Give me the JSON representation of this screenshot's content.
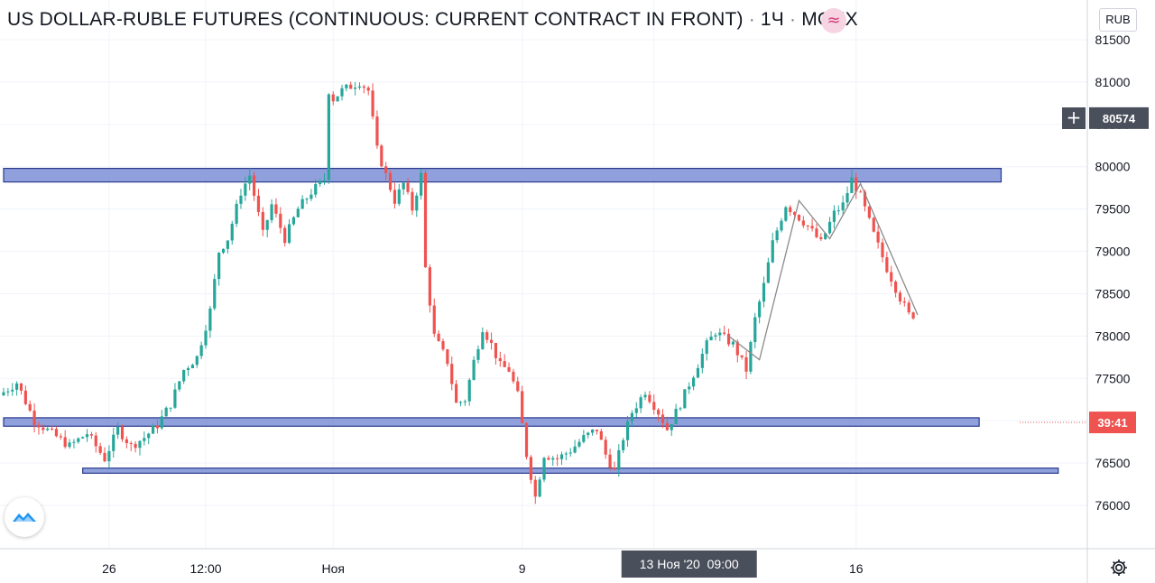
{
  "header": {
    "symbol": "US DOLLAR-RUBLE FUTURES (CONTINUOUS: CURRENT CONTRACT IN FRONT)",
    "separator": "·",
    "interval": "1Ч",
    "exchange": "MOEX",
    "approx_symbol": "≈",
    "currency": "RUB"
  },
  "crosshair": {
    "price_label": "80574",
    "time_label": "13 Ноя '20  09:00",
    "plus_symbol": "+"
  },
  "countdown_label": "39:41",
  "icons": {
    "logo": "tradingview-logo-icon",
    "settings": "gear-icon",
    "plus": "plus-icon"
  },
  "colors": {
    "up": "#26a69a",
    "down": "#ef5350",
    "zone_fill": "#7b8fd6",
    "zone_stroke": "#2a3a8c",
    "trend_line": "#8a8a8a",
    "countdown_bg": "#ef5350",
    "badge_bg": "#4a4f5c",
    "grid": "#f0f3fa"
  },
  "chart_data": {
    "type": "candlestick",
    "y_axis": {
      "range": [
        75600,
        81800
      ],
      "ticks": [
        81500,
        81000,
        80500,
        80000,
        79500,
        79000,
        78500,
        78000,
        77500,
        77000,
        76500,
        76000
      ]
    },
    "x_axis": {
      "range_hours": [
        0,
        241
      ],
      "ticks": [
        {
          "label": "26",
          "at": 24
        },
        {
          "label": "12:00",
          "at": 46
        },
        {
          "label": "Ноя",
          "at": 75
        },
        {
          "label": "9",
          "at": 118
        },
        {
          "label": "12",
          "at": 148
        },
        {
          "label": "16",
          "at": 194
        }
      ]
    },
    "series_anchors": [
      [
        0,
        77300
      ],
      [
        4,
        77450
      ],
      [
        8,
        77000
      ],
      [
        12,
        76850
      ],
      [
        16,
        76700
      ],
      [
        20,
        76850
      ],
      [
        24,
        76550
      ],
      [
        27,
        76900
      ],
      [
        30,
        76700
      ],
      [
        33,
        76800
      ],
      [
        36,
        76950
      ],
      [
        39,
        77200
      ],
      [
        42,
        77600
      ],
      [
        45,
        77750
      ],
      [
        48,
        78300
      ],
      [
        50,
        79000
      ],
      [
        52,
        79150
      ],
      [
        55,
        79700
      ],
      [
        57,
        79900
      ],
      [
        60,
        79200
      ],
      [
        62,
        79550
      ],
      [
        65,
        79150
      ],
      [
        68,
        79500
      ],
      [
        71,
        79700
      ],
      [
        74,
        79850
      ],
      [
        75,
        80900
      ],
      [
        76,
        80800
      ],
      [
        78,
        80900
      ],
      [
        80,
        80950
      ],
      [
        82,
        81000
      ],
      [
        84,
        80900
      ],
      [
        86,
        80200
      ],
      [
        88,
        79900
      ],
      [
        90,
        79600
      ],
      [
        92,
        79800
      ],
      [
        94,
        79500
      ],
      [
        96,
        79900
      ],
      [
        97,
        78800
      ],
      [
        99,
        78000
      ],
      [
        102,
        77700
      ],
      [
        104,
        77200
      ],
      [
        106,
        77250
      ],
      [
        108,
        77700
      ],
      [
        110,
        78100
      ],
      [
        112,
        77900
      ],
      [
        114,
        77650
      ],
      [
        116,
        77600
      ],
      [
        118,
        77300
      ],
      [
        120,
        76600
      ],
      [
        122,
        76100
      ],
      [
        124,
        76600
      ],
      [
        127,
        76550
      ],
      [
        130,
        76650
      ],
      [
        133,
        76800
      ],
      [
        136,
        76900
      ],
      [
        138,
        76600
      ],
      [
        140,
        76400
      ],
      [
        142,
        76800
      ],
      [
        144,
        77100
      ],
      [
        147,
        77350
      ],
      [
        150,
        77100
      ],
      [
        152,
        76900
      ],
      [
        155,
        77200
      ],
      [
        158,
        77550
      ],
      [
        161,
        77900
      ],
      [
        163,
        78050
      ],
      [
        167,
        77900
      ],
      [
        170,
        77600
      ],
      [
        172,
        78200
      ],
      [
        174,
        78600
      ],
      [
        176,
        79100
      ],
      [
        179,
        79550
      ],
      [
        181,
        79450
      ],
      [
        184,
        79300
      ],
      [
        187,
        79100
      ],
      [
        190,
        79450
      ],
      [
        192,
        79550
      ],
      [
        194,
        79850
      ],
      [
        196,
        79650
      ],
      [
        199,
        79200
      ],
      [
        202,
        78800
      ],
      [
        205,
        78450
      ],
      [
        207,
        78250
      ]
    ],
    "support_resistance_zones": [
      {
        "price_low": 79820,
        "price_high": 79980,
        "x_start_hour": 0,
        "x_end_hour": 227
      },
      {
        "price_low": 76935,
        "price_high": 77035,
        "x_start_hour": 0,
        "x_end_hour": 222
      },
      {
        "price_low": 76380,
        "price_high": 76440,
        "x_start_hour": 18,
        "x_end_hour": 240
      }
    ],
    "trend_line": [
      [
        165,
        78000
      ],
      [
        172,
        77720
      ],
      [
        181,
        79600
      ],
      [
        188,
        79150
      ],
      [
        195,
        79800
      ],
      [
        208,
        78250
      ]
    ],
    "crosshair_price": 80574,
    "countdown_price": 76980,
    "crosshair_hour": 156
  }
}
